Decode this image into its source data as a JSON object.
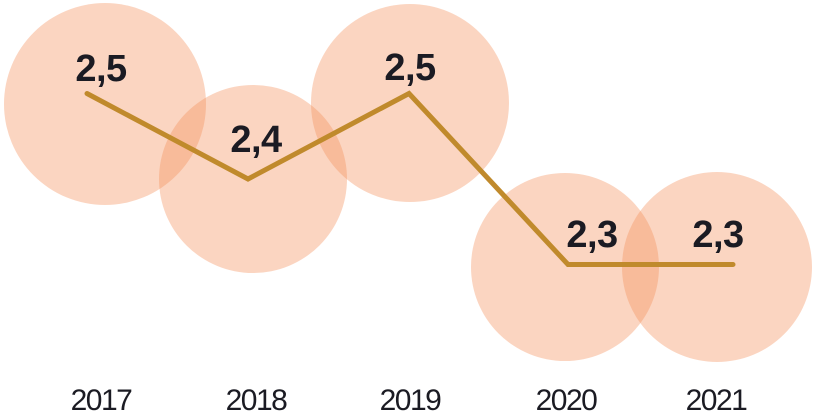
{
  "chart_data": {
    "type": "line",
    "title": "",
    "xlabel": "",
    "ylabel": "",
    "categories": [
      "2017",
      "2018",
      "2019",
      "2020",
      "2021"
    ],
    "values": [
      2.5,
      2.4,
      2.5,
      2.3,
      2.3
    ],
    "point_labels": [
      "2,5",
      "2,4",
      "2,5",
      "2,3",
      "2,3"
    ],
    "decimal_separator": ",",
    "ylim": [
      2.2,
      2.6
    ],
    "grid": false,
    "legend_position": "none",
    "marker_style": "large-translucent-bubble",
    "colors": {
      "bubble": "#F5915D",
      "bubble_opacity": 0.38,
      "line": "#C08A2C",
      "text": "#1B1B23",
      "background": "#FFFFFF"
    }
  }
}
